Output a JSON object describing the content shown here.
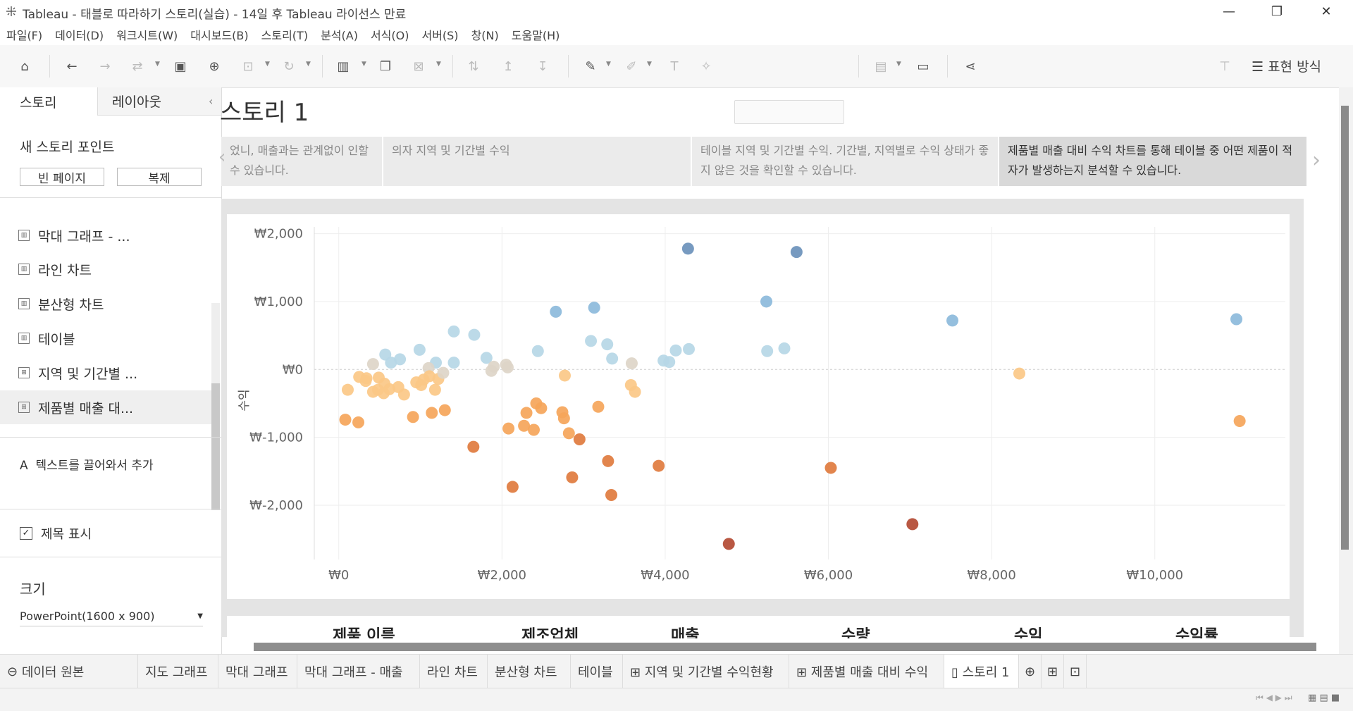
{
  "titlebar": {
    "title": "Tableau - 태블로 따라하기 스토리(실습) - 14일 후 Tableau 라이선스 만료",
    "minimize": "—",
    "restore": "❐",
    "close": "✕"
  },
  "menu": [
    "파일(F)",
    "데이터(D)",
    "워크시트(W)",
    "대시보드(B)",
    "스토리(T)",
    "분석(A)",
    "서식(O)",
    "서버(S)",
    "창(N)",
    "도움말(H)"
  ],
  "toolbar": {
    "icons": [
      "home-icon",
      "undo-icon",
      "redo-icon",
      "swap-icon",
      "save-icon",
      "new-data-icon",
      "extract-icon",
      "refresh-icon",
      "new-sheet-icon",
      "duplicate-icon",
      "clear-icon",
      "swap-axes-icon",
      "sort-asc-icon",
      "sort-desc-icon",
      "highlight-icon",
      "attach-icon",
      "label-icon",
      "pin-icon",
      "chart-icon",
      "presentation-icon",
      "share-icon"
    ],
    "present_label": "표현 방식"
  },
  "panel": {
    "tab_story": "스토리",
    "tab_layout": "레이아웃",
    "new_point_label": "새 스토리 포인트",
    "blank_btn": "빈 페이지",
    "duplicate_btn": "복제",
    "sheets": [
      "막대 그래프 - ...",
      "라인 차트",
      "분산형 차트",
      "테이블",
      "지역 및 기간별 ...",
      "제품별 매출 대..."
    ],
    "drag_text": "텍스트를 끌어와서 추가",
    "drag_icon": "A",
    "show_title": "제목 표시",
    "show_title_checked": "✓",
    "size_label": "크기",
    "size_value": "PowerPoint(1600 x 900)"
  },
  "story": {
    "title": "스토리 1",
    "points": [
      "었니, 매출과는 관계없이 인할 수 있습니다.",
      "의자 지역 및 기간별 수익",
      "테이블 지역 및 기간별 수익. 기간별, 지역별로 수익 상태가 좋지 않은 것을 확인할 수 있습니다.",
      "제품별 매출 대비 수익 차트를 통해 테이블 중 어떤 제품이 적자가 발생하는지 분석할 수 있습니다."
    ]
  },
  "chart_data": {
    "type": "scatter",
    "xlabel": "",
    "ylabel": "수익",
    "xlim": [
      -300,
      11600
    ],
    "ylim": [
      -2800,
      2100
    ],
    "x_ticks": [
      "₩0",
      "₩2,000",
      "₩4,000",
      "₩6,000",
      "₩8,000",
      "₩10,000"
    ],
    "x_tick_values": [
      0,
      2000,
      4000,
      6000,
      8000,
      10000
    ],
    "y_ticks": [
      "₩2,000",
      "₩1,000",
      "₩0",
      "₩-1,000",
      "₩-2,000"
    ],
    "y_tick_values": [
      2000,
      1000,
      0,
      -1000,
      -2000
    ],
    "color_scale": {
      "diverging": true,
      "colors": [
        "#b34a33",
        "#e07b3e",
        "#f5a55a",
        "#fbc887",
        "#ddd5c8",
        "#b6d7e6",
        "#8cbadb",
        "#6b91bb"
      ]
    },
    "points": [
      [
        4280,
        1780
      ],
      [
        5610,
        1730
      ],
      [
        3130,
        910
      ],
      [
        2660,
        850
      ],
      [
        5240,
        1000
      ],
      [
        7520,
        720
      ],
      [
        11000,
        740
      ],
      [
        1410,
        560
      ],
      [
        1660,
        510
      ],
      [
        3090,
        420
      ],
      [
        3290,
        370
      ],
      [
        2440,
        270
      ],
      [
        4130,
        280
      ],
      [
        4290,
        300
      ],
      [
        5250,
        270
      ],
      [
        5460,
        310
      ],
      [
        990,
        290
      ],
      [
        570,
        220
      ],
      [
        1810,
        170
      ],
      [
        3350,
        160
      ],
      [
        3980,
        130
      ],
      [
        4050,
        110
      ],
      [
        3590,
        90
      ],
      [
        750,
        150
      ],
      [
        420,
        80
      ],
      [
        640,
        100
      ],
      [
        1190,
        100
      ],
      [
        1410,
        100
      ],
      [
        2050,
        70
      ],
      [
        1900,
        40
      ],
      [
        2070,
        30
      ],
      [
        1100,
        20
      ],
      [
        250,
        -110
      ],
      [
        340,
        -130
      ],
      [
        490,
        -120
      ],
      [
        330,
        -170
      ],
      [
        560,
        -210
      ],
      [
        730,
        -260
      ],
      [
        1220,
        -140
      ],
      [
        1280,
        -50
      ],
      [
        1110,
        -100
      ],
      [
        1040,
        -150
      ],
      [
        110,
        -300
      ],
      [
        620,
        -290
      ],
      [
        1010,
        -230
      ],
      [
        1180,
        -300
      ],
      [
        480,
        -300
      ],
      [
        420,
        -330
      ],
      [
        800,
        -370
      ],
      [
        550,
        -350
      ],
      [
        950,
        -190
      ],
      [
        2770,
        -90
      ],
      [
        1870,
        -20
      ],
      [
        8340,
        -60
      ],
      [
        3580,
        -230
      ],
      [
        3630,
        -330
      ],
      [
        80,
        -740
      ],
      [
        240,
        -780
      ],
      [
        910,
        -700
      ],
      [
        1140,
        -640
      ],
      [
        1300,
        -600
      ],
      [
        2420,
        -500
      ],
      [
        2480,
        -570
      ],
      [
        2300,
        -640
      ],
      [
        2740,
        -630
      ],
      [
        2760,
        -720
      ],
      [
        3180,
        -550
      ],
      [
        2080,
        -870
      ],
      [
        2270,
        -830
      ],
      [
        2390,
        -890
      ],
      [
        2820,
        -940
      ],
      [
        2950,
        -1030
      ],
      [
        1650,
        -1140
      ],
      [
        3300,
        -1350
      ],
      [
        3920,
        -1420
      ],
      [
        6030,
        -1450
      ],
      [
        2130,
        -1730
      ],
      [
        2860,
        -1590
      ],
      [
        3340,
        -1850
      ],
      [
        11040,
        -760
      ],
      [
        7030,
        -2280
      ],
      [
        4780,
        -2570
      ]
    ]
  },
  "table": {
    "headers": [
      "제품 이름",
      "제조업체",
      "매출",
      "수량",
      "수익",
      "수익률"
    ]
  },
  "bottom_tabs": {
    "data_source": "데이터 원본",
    "sheets": [
      "지도 그래프",
      "막대 그래프",
      "막대 그래프 - 매출",
      "라인 차트",
      "분산형 차트",
      "테이블",
      "⊞ 지역 및 기간별 수익현황",
      "⊞ 제품별 매출 대비 수익",
      "▯ 스토리 1"
    ]
  }
}
